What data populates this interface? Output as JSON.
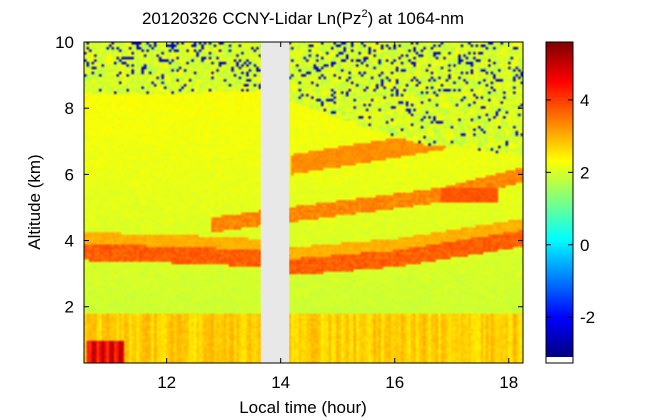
{
  "chart_data": {
    "type": "heatmap",
    "title_main": "20120326 CCNY-Lidar Ln(Pz",
    "title_sup": "2",
    "title_tail": ") at 1064-nm",
    "xlabel": "Local time (hour)",
    "ylabel": "Altitude (km)",
    "xlim": [
      10.55,
      18.25
    ],
    "ylim": [
      0.3,
      10.0
    ],
    "x_ticks": [
      12,
      14,
      16,
      18
    ],
    "y_ticks": [
      2,
      4,
      6,
      8,
      10
    ],
    "colorbar_ticks": [
      4,
      2,
      0,
      -2
    ],
    "color_range": [
      -3.1,
      5.6
    ],
    "colormap": "jet",
    "data_gap": {
      "start": 13.65,
      "end": 14.15,
      "color": "#e8e8e8"
    },
    "features": {
      "surface_layer": {
        "from_km": 0.3,
        "to_km": 1.8,
        "value": 2.8
      },
      "dense_burst": {
        "t_start": 10.6,
        "t_end": 11.25,
        "to_km": 1.0,
        "value": 4.6
      },
      "aerosol_layer": {
        "value": 3.6,
        "thickness_km": 0.5,
        "top_km": [
          [
            10.55,
            3.9
          ],
          [
            12.5,
            3.8
          ],
          [
            13.65,
            3.7
          ],
          [
            14.2,
            3.45
          ],
          [
            16.0,
            3.7
          ],
          [
            18.2,
            4.3
          ]
        ]
      },
      "elevated_layer": {
        "value": 3.3,
        "top_km": [
          [
            12.8,
            4.7
          ],
          [
            13.65,
            4.9
          ],
          [
            15.5,
            5.3
          ],
          [
            16.8,
            5.6
          ],
          [
            18.2,
            6.2
          ]
        ]
      },
      "cloud_bright": {
        "t_start": 16.8,
        "t_end": 17.8,
        "alt_km": 5.35,
        "value": 3.8
      },
      "upper_edge": {
        "value": 3.3,
        "alt_km": [
          [
            14.2,
            6.3
          ],
          [
            16.0,
            6.8
          ],
          [
            17.0,
            7.1
          ],
          [
            18.2,
            7.7
          ]
        ]
      },
      "noise_region": {
        "value": 2.0,
        "base_km": [
          [
            10.55,
            8.4
          ],
          [
            13.65,
            8.5
          ],
          [
            14.2,
            8.2
          ],
          [
            15.5,
            7.4
          ],
          [
            16.5,
            6.9
          ],
          [
            18.2,
            6.6
          ]
        ]
      }
    }
  }
}
